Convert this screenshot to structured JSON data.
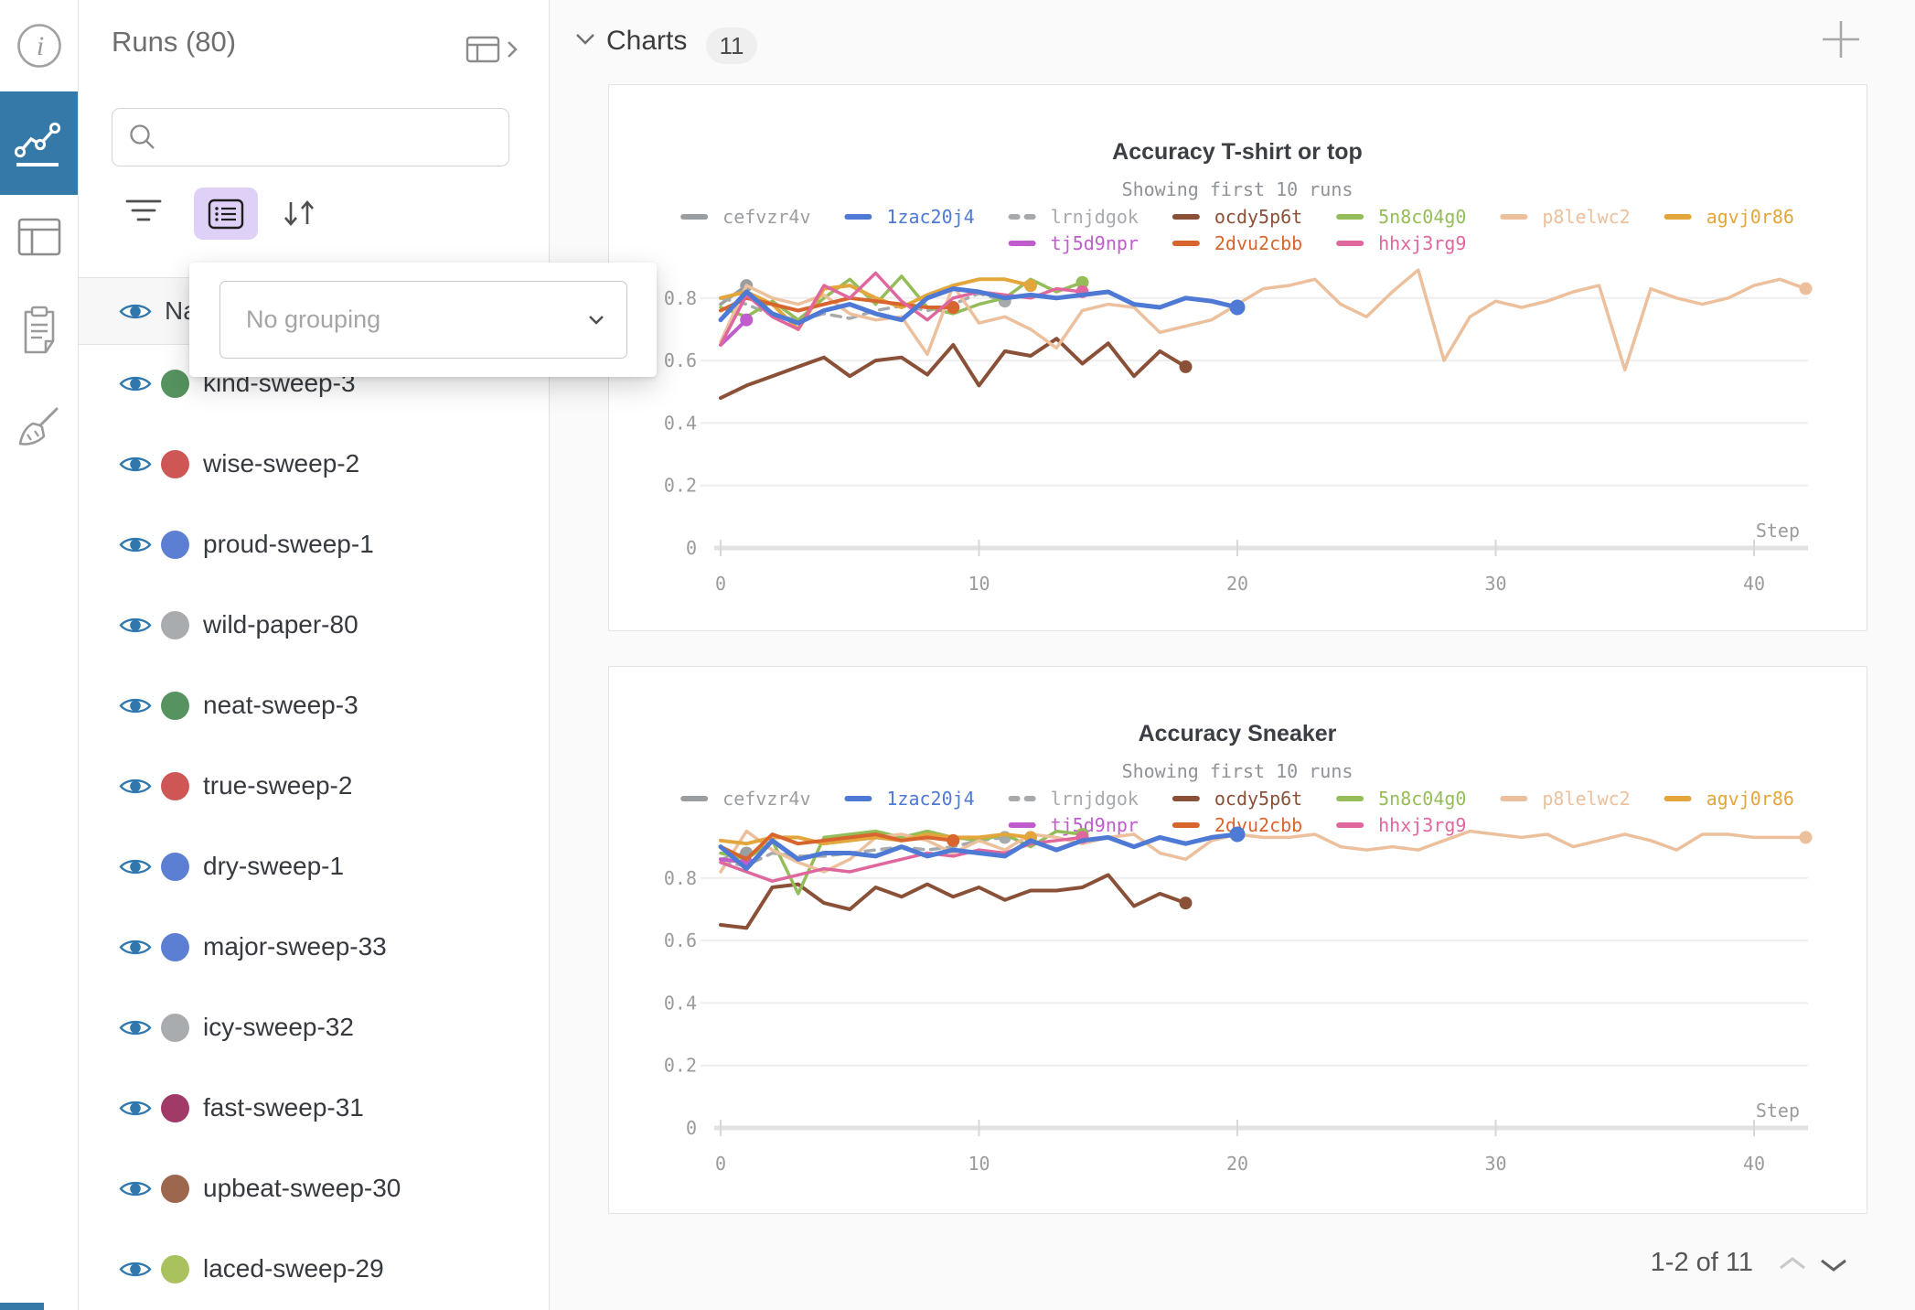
{
  "left_rail": {
    "items": [
      {
        "icon": "info-icon",
        "active": false
      },
      {
        "icon": "line-chart-icon",
        "active": true
      },
      {
        "icon": "table-icon",
        "active": false
      },
      {
        "icon": "clipboard-icon",
        "active": false
      },
      {
        "icon": "broom-icon",
        "active": false
      }
    ]
  },
  "sidebar": {
    "title": "Runs (80)",
    "search": {
      "placeholder": "",
      "value": ""
    },
    "grouping": {
      "placeholder": "No grouping"
    },
    "header_row": {
      "label": "Name"
    },
    "runs": [
      {
        "name": "kind-sweep-3",
        "color": "#569360"
      },
      {
        "name": "wise-sweep-2",
        "color": "#ce5756"
      },
      {
        "name": "proud-sweep-1",
        "color": "#5d7fd3"
      },
      {
        "name": "wild-paper-80",
        "color": "#a8acaf"
      },
      {
        "name": "neat-sweep-3",
        "color": "#569360"
      },
      {
        "name": "true-sweep-2",
        "color": "#ce5756"
      },
      {
        "name": "dry-sweep-1",
        "color": "#5d7fd3"
      },
      {
        "name": "major-sweep-33",
        "color": "#5d7fd3"
      },
      {
        "name": "icy-sweep-32",
        "color": "#a8acaf"
      },
      {
        "name": "fast-sweep-31",
        "color": "#a13a66"
      },
      {
        "name": "upbeat-sweep-30",
        "color": "#9c674d"
      },
      {
        "name": "laced-sweep-29",
        "color": "#a9c25d"
      }
    ]
  },
  "main": {
    "title": "Charts",
    "count": "11",
    "pagination": {
      "label": "1-2 of 11"
    }
  },
  "chart_data": [
    {
      "type": "line",
      "title": "Accuracy T-shirt or top",
      "subtitle": "Showing first 10 runs",
      "xlabel": "Step",
      "xticks": [
        0,
        10,
        20,
        30,
        40
      ],
      "yticks": [
        0,
        0.2,
        0.4,
        0.6,
        0.8
      ],
      "xlim": [
        0,
        42
      ],
      "ylim": [
        0,
        1
      ],
      "grid": true,
      "legend_position": "top",
      "legend_rows": [
        [
          "cefvzr4v",
          "1zac20j4",
          "lrnjdgok",
          "ocdy5p6t",
          "5n8c04g0",
          "p8lelwc2",
          "agvj0r86"
        ],
        [
          "tj5d9npr",
          "2dvu2cbb",
          "hhxj3rg9"
        ]
      ],
      "series": [
        {
          "name": "cefvzr4v",
          "color": "#9b9ea1",
          "dashed": false,
          "width": 3.5,
          "values": [
            0.78,
            0.84
          ]
        },
        {
          "name": "lrnjdgok",
          "color": "#a7aaad",
          "dashed": true,
          "width": 3.5,
          "values": [
            0.8,
            0.78,
            0.745,
            0.73,
            0.75,
            0.735,
            0.76,
            0.775,
            0.76,
            0.78,
            0.815,
            0.79
          ]
        },
        {
          "name": "ocdy5p6t",
          "color": "#8a5138",
          "dashed": false,
          "width": 4,
          "values": [
            0.48,
            0.52,
            0.55,
            0.58,
            0.61,
            0.55,
            0.6,
            0.61,
            0.555,
            0.65,
            0.52,
            0.63,
            0.615,
            0.67,
            0.59,
            0.655,
            0.55,
            0.63,
            0.58
          ]
        },
        {
          "name": "5n8c04g0",
          "color": "#94bd59",
          "dashed": false,
          "width": 3.5,
          "values": [
            0.77,
            0.74,
            0.79,
            0.73,
            0.8,
            0.86,
            0.78,
            0.87,
            0.77,
            0.75,
            0.78,
            0.8,
            0.86,
            0.82,
            0.85
          ]
        },
        {
          "name": "p8lelwc2",
          "color": "#ecc09c",
          "dashed": false,
          "width": 3.5,
          "values": [
            0.66,
            0.84,
            0.8,
            0.78,
            0.81,
            0.75,
            0.73,
            0.74,
            0.62,
            0.84,
            0.72,
            0.74,
            0.7,
            0.64,
            0.76,
            0.78,
            0.77,
            0.69,
            0.71,
            0.73,
            0.78,
            0.83,
            0.84,
            0.86,
            0.78,
            0.74,
            0.82,
            0.89,
            0.6,
            0.74,
            0.79,
            0.77,
            0.79,
            0.82,
            0.84,
            0.57,
            0.83,
            0.8,
            0.78,
            0.8,
            0.84,
            0.86,
            0.83
          ]
        },
        {
          "name": "agvj0r86",
          "color": "#e3a63d",
          "dashed": false,
          "width": 4,
          "values": [
            0.8,
            0.82,
            0.78,
            0.7,
            0.83,
            0.84,
            0.8,
            0.77,
            0.81,
            0.84,
            0.86,
            0.86,
            0.84
          ]
        },
        {
          "name": "tj5d9npr",
          "color": "#c05ccd",
          "dashed": false,
          "width": 4,
          "values": [
            0.65,
            0.73
          ]
        },
        {
          "name": "2dvu2cbb",
          "color": "#d9652e",
          "dashed": false,
          "width": 4,
          "values": [
            0.76,
            0.8,
            0.78,
            0.76,
            0.78,
            0.8,
            0.79,
            0.78,
            0.77,
            0.77
          ]
        },
        {
          "name": "hhxj3rg9",
          "color": "#e0679e",
          "dashed": false,
          "width": 3.5,
          "values": [
            0.65,
            0.81,
            0.74,
            0.7,
            0.84,
            0.8,
            0.88,
            0.79,
            0.73,
            0.8,
            0.82,
            0.81,
            0.8,
            0.83,
            0.82
          ]
        },
        {
          "name": "1zac20j4",
          "color": "#4e79d4",
          "dashed": false,
          "width": 5,
          "values": [
            0.73,
            0.82,
            0.75,
            0.72,
            0.76,
            0.78,
            0.75,
            0.73,
            0.8,
            0.83,
            0.82,
            0.8,
            0.81,
            0.8,
            0.81,
            0.82,
            0.78,
            0.77,
            0.8,
            0.79,
            0.77
          ]
        }
      ]
    },
    {
      "type": "line",
      "title": "Accuracy Sneaker",
      "subtitle": "Showing first 10 runs",
      "xlabel": "Step",
      "xticks": [
        0,
        10,
        20,
        30,
        40
      ],
      "yticks": [
        0,
        0.2,
        0.4,
        0.6,
        0.8
      ],
      "xlim": [
        0,
        42
      ],
      "ylim": [
        0,
        1
      ],
      "grid": true,
      "legend_position": "top",
      "legend_rows": [
        [
          "cefvzr4v",
          "1zac20j4",
          "lrnjdgok",
          "ocdy5p6t",
          "5n8c04g0",
          "p8lelwc2",
          "agvj0r86"
        ],
        [
          "tj5d9npr",
          "2dvu2cbb",
          "hhxj3rg9"
        ]
      ],
      "series": [
        {
          "name": "cefvzr4v",
          "color": "#9b9ea1",
          "dashed": false,
          "width": 3.5,
          "values": [
            0.86,
            0.88
          ]
        },
        {
          "name": "lrnjdgok",
          "color": "#a7aaad",
          "dashed": true,
          "width": 3.5,
          "values": [
            0.85,
            0.84,
            0.88,
            0.87,
            0.87,
            0.88,
            0.89,
            0.9,
            0.89,
            0.9,
            0.92,
            0.93
          ]
        },
        {
          "name": "ocdy5p6t",
          "color": "#8a5138",
          "dashed": false,
          "width": 4,
          "values": [
            0.65,
            0.64,
            0.77,
            0.78,
            0.72,
            0.7,
            0.77,
            0.74,
            0.78,
            0.74,
            0.77,
            0.73,
            0.76,
            0.76,
            0.77,
            0.81,
            0.71,
            0.75,
            0.72
          ]
        },
        {
          "name": "5n8c04g0",
          "color": "#94bd59",
          "dashed": false,
          "width": 3.5,
          "values": [
            0.88,
            0.86,
            0.92,
            0.75,
            0.93,
            0.94,
            0.95,
            0.93,
            0.95,
            0.93,
            0.92,
            0.94,
            0.9,
            0.95,
            0.94
          ]
        },
        {
          "name": "p8lelwc2",
          "color": "#ecc09c",
          "dashed": false,
          "width": 3.5,
          "values": [
            0.82,
            0.95,
            0.89,
            0.85,
            0.82,
            0.86,
            0.93,
            0.94,
            0.92,
            0.88,
            0.92,
            0.89,
            0.94,
            0.93,
            0.91,
            0.93,
            0.94,
            0.88,
            0.86,
            0.92,
            0.94,
            0.93,
            0.93,
            0.94,
            0.9,
            0.89,
            0.9,
            0.89,
            0.92,
            0.95,
            0.94,
            0.93,
            0.94,
            0.9,
            0.92,
            0.94,
            0.92,
            0.89,
            0.94,
            0.94,
            0.93,
            0.93,
            0.93
          ]
        },
        {
          "name": "agvj0r86",
          "color": "#e3a63d",
          "dashed": false,
          "width": 4,
          "values": [
            0.92,
            0.91,
            0.93,
            0.93,
            0.91,
            0.92,
            0.93,
            0.92,
            0.94,
            0.93,
            0.93,
            0.94,
            0.93
          ]
        },
        {
          "name": "tj5d9npr",
          "color": "#c05ccd",
          "dashed": false,
          "width": 4,
          "values": [
            0.86,
            0.85
          ]
        },
        {
          "name": "2dvu2cbb",
          "color": "#d9652e",
          "dashed": false,
          "width": 4,
          "values": [
            0.9,
            0.86,
            0.94,
            0.91,
            0.92,
            0.93,
            0.94,
            0.92,
            0.93,
            0.92
          ]
        },
        {
          "name": "hhxj3rg9",
          "color": "#e0679e",
          "dashed": false,
          "width": 3.5,
          "values": [
            0.85,
            0.82,
            0.79,
            0.81,
            0.83,
            0.82,
            0.84,
            0.86,
            0.88,
            0.87,
            0.89,
            0.88,
            0.91,
            0.92,
            0.93
          ]
        },
        {
          "name": "1zac20j4",
          "color": "#4e79d4",
          "dashed": false,
          "width": 5,
          "values": [
            0.9,
            0.83,
            0.92,
            0.86,
            0.88,
            0.88,
            0.87,
            0.9,
            0.87,
            0.89,
            0.88,
            0.87,
            0.92,
            0.89,
            0.92,
            0.93,
            0.9,
            0.93,
            0.91,
            0.93,
            0.94
          ]
        }
      ]
    }
  ]
}
